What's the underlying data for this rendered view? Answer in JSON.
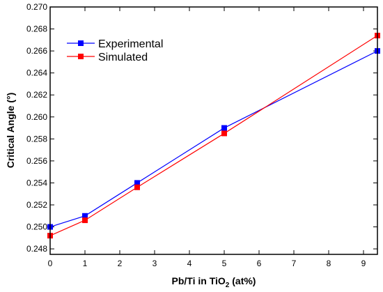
{
  "chart_data": {
    "type": "line",
    "xlabel": {
      "prefix": "Pb/Ti in TiO",
      "sub": "2",
      "suffix": " (at%)"
    },
    "ylabel": "Critical Angle (°)",
    "xlim": [
      0,
      9.4
    ],
    "ylim": [
      0.2475,
      0.27
    ],
    "xticks": [
      0,
      1,
      2,
      3,
      4,
      5,
      6,
      7,
      8,
      9
    ],
    "yticks": [
      0.248,
      0.25,
      0.252,
      0.254,
      0.256,
      0.258,
      0.26,
      0.262,
      0.264,
      0.266,
      0.268,
      0.27
    ],
    "yticklabels": [
      "0.248",
      "0.250",
      "0.252",
      "0.254",
      "0.256",
      "0.258",
      "0.260",
      "0.262",
      "0.264",
      "0.266",
      "0.268",
      "0.270"
    ],
    "grid": false,
    "legend_position": "top-left",
    "series": [
      {
        "name": "Experimental",
        "color": "#0000ff",
        "marker": "square",
        "x": [
          0,
          1,
          2.5,
          5,
          9.4
        ],
        "y": [
          0.25,
          0.251,
          0.254,
          0.259,
          0.266
        ]
      },
      {
        "name": "Simulated",
        "color": "#ff0000",
        "marker": "square",
        "x": [
          0,
          1,
          2.5,
          5,
          9.4
        ],
        "y": [
          0.2492,
          0.2506,
          0.2536,
          0.2585,
          0.2674
        ]
      }
    ]
  }
}
